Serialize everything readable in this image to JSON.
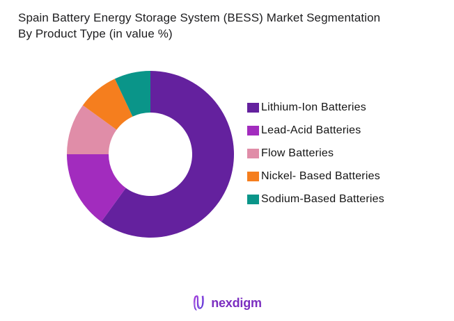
{
  "title": {
    "line1": "Spain Battery Energy Storage System (BESS) Market Segmentation",
    "line2": "By Product Type (in value %)"
  },
  "chart_data": {
    "type": "pie",
    "subtype": "donut",
    "title": "Spain Battery Energy Storage System (BESS) Market Segmentation By Product Type (in value %)",
    "unit": "value %",
    "start_angle_deg": 0,
    "direction": "clockwise",
    "inner_radius_ratio": 0.5,
    "legend_position": "right",
    "grid": false,
    "series": [
      {
        "label": "Lithium-Ion Batteries",
        "value": 60,
        "color": "#64219E"
      },
      {
        "label": "Lead-Acid Batteries",
        "value": 15,
        "color": "#A22CBE"
      },
      {
        "label": "Flow Batteries",
        "value": 10,
        "color": "#E08DA8"
      },
      {
        "label": "Nickel- Based Batteries",
        "value": 8,
        "color": "#F57E1E"
      },
      {
        "label": "Sodium-Based Batteries",
        "value": 7,
        "color": "#0A9589"
      }
    ]
  },
  "footer": {
    "brand": "nexdigm",
    "brand_color": "#7B2EC0"
  }
}
